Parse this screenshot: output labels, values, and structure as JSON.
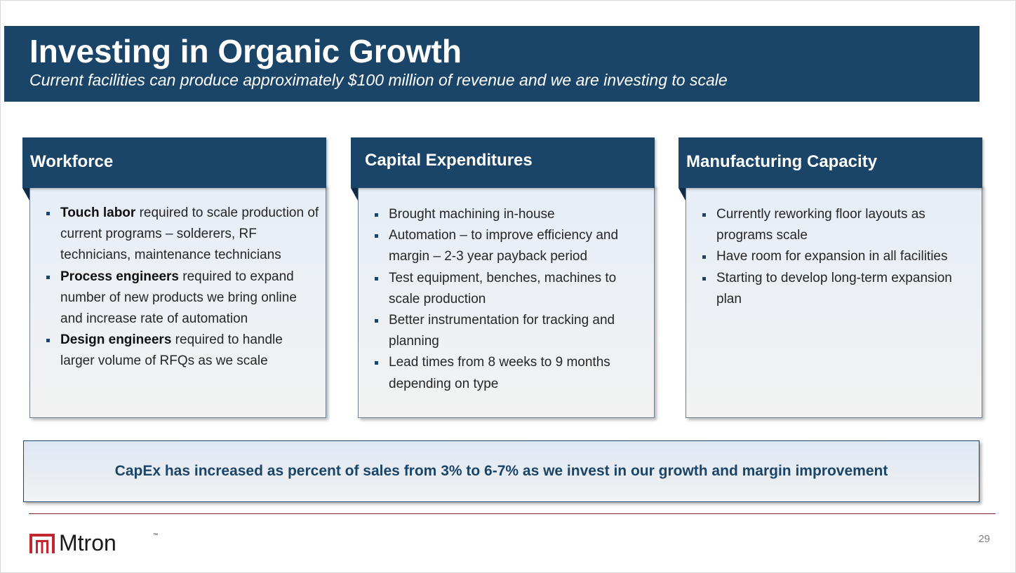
{
  "header": {
    "title": "Investing in Organic Growth",
    "subtitle": "Current facilities can produce approximately $100 million of revenue and we are investing to scale"
  },
  "cards": [
    {
      "title": "Workforce",
      "bullets": [
        {
          "bold": "Touch labor",
          "text": " required to scale production of current programs – solderers, RF technicians, maintenance technicians"
        },
        {
          "bold": "Process engineers",
          "text": " required to expand number of new products we bring online and increase rate of automation"
        },
        {
          "bold": "Design engineers",
          "text": " required to handle larger volume of RFQs as we scale"
        }
      ]
    },
    {
      "title": "Capital Expenditures",
      "bullets": [
        {
          "text": "Brought machining in-house"
        },
        {
          "text": "Automation – to improve efficiency and margin – 2-3 year payback period"
        },
        {
          "text": "Test equipment, benches, machines to scale production"
        },
        {
          "text": "Better instrumentation for tracking and planning"
        },
        {
          "text": "Lead times from 8 weeks to 9 months depending on type"
        }
      ]
    },
    {
      "title": "Manufacturing Capacity",
      "bullets": [
        {
          "text": "Currently reworking floor layouts as programs scale"
        },
        {
          "text": "Have room for expansion in all facilities"
        },
        {
          "text": "Starting to develop long-term expansion plan"
        }
      ]
    }
  ],
  "callout": {
    "text": "CapEx has increased as percent of sales from 3% to 6-7% as we invest in our growth and margin improvement"
  },
  "footer": {
    "logo_text": "Mtron",
    "logo_tm": "™",
    "page_number": "29"
  },
  "colors": {
    "navy": "#1b4568",
    "accent_red": "#c0282d",
    "rule": "#8b1c24"
  },
  "icons": {
    "logo_mark": "mtron-logo-mark"
  }
}
